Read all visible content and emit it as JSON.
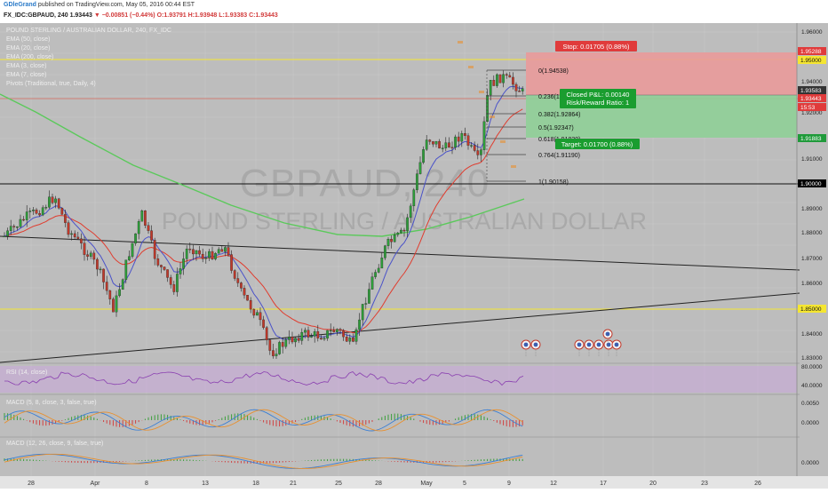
{
  "header": {
    "author": "GDleGrand",
    "published_text": "published on TradingView.com, May 05, 2016 00:44 EST",
    "symbol": "FX_IDC:GBPAUD, 240",
    "last": "1.93443",
    "change": "▼ −0.00851 (−0.44%)",
    "ohlc": "O:1.93791 H:1.93948 L:1.93383 C:1.93443"
  },
  "legend": {
    "title": "POUND STERLING / AUSTRALIAN DOLLAR, 240, FX_IDC",
    "items": [
      "EMA (50, close)",
      "EMA (20, close)",
      "EMA (200, close)",
      "EMA (3, close)",
      "EMA (7, close)",
      "Pivots (Traditional, true, Daily, 4)"
    ]
  },
  "watermark": {
    "symbol": "GBPAUD, 240",
    "name": "POUND STERLING / AUSTRALIAN DOLLAR"
  },
  "price_axis": {
    "ticks": [
      "1.96000",
      "1.94000",
      "1.92000",
      "1.91000",
      "1.89000",
      "1.88000",
      "1.87000",
      "1.86000",
      "1.84000",
      "1.83000"
    ],
    "markers": [
      {
        "label": "1.95288",
        "color": "#e03b3b"
      },
      {
        "label": "1.95000",
        "color": "#f5e631"
      },
      {
        "label": "1.93583",
        "color": "#333333"
      },
      {
        "label": "1.93443",
        "color": "#e03b3b"
      },
      {
        "label": "15:53",
        "color": "#e03b3b"
      },
      {
        "label": "1.91883",
        "color": "#1f9a3a"
      },
      {
        "label": "1.90000",
        "color": "#000000"
      },
      {
        "label": "1.85000",
        "color": "#f5e631"
      }
    ]
  },
  "fib_levels": [
    {
      "label": "0(1.94538)"
    },
    {
      "label": "0.236(1.93..."
    },
    {
      "label": "0.382(1.92864)"
    },
    {
      "label": "0.5(1.92347)"
    },
    {
      "label": "0.618(1.91830)"
    },
    {
      "label": "0.764(1.91190)"
    },
    {
      "label": "1(1.90158)"
    }
  ],
  "position_tool": {
    "stop_label": "Stop: 0.01705 (0.88%)",
    "pnl_label": "Closed P&L: 0.00140",
    "ratio_label": "Risk/Reward Ratio: 1",
    "target_label": "Target: 0.01700 (0.88%)"
  },
  "indicators": {
    "rsi": {
      "label": "RSI (14, close)",
      "ticks": [
        "80.0000",
        "40.0000"
      ]
    },
    "macd1": {
      "label": "MACD (5, 8, close, 3, false, true)",
      "ticks": [
        "0.0050",
        "0.0000"
      ]
    },
    "macd2": {
      "label": "MACD (12, 26, close, 9, false, true)",
      "ticks": [
        "0.0000"
      ]
    }
  },
  "time_axis": {
    "ticks": [
      "28",
      "Apr",
      "8",
      "13",
      "18",
      "21",
      "25",
      "28",
      "May",
      "5",
      "9",
      "12",
      "17",
      "20",
      "23",
      "26"
    ]
  }
}
